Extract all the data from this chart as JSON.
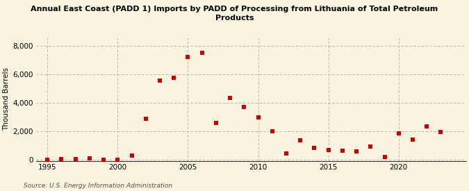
{
  "title": "Annual East Coast (PADD 1) Imports by PADD of Processing from Lithuania of Total Petroleum\nProducts",
  "ylabel": "Thousand Barrels",
  "source": "Source: U.S. Energy Information Administration",
  "background_color": "#faf3e0",
  "marker_color": "#cc0000",
  "xlim": [
    1994.2,
    2024.8
  ],
  "ylim": [
    -100,
    8600
  ],
  "xticks": [
    1995,
    2000,
    2005,
    2010,
    2015,
    2020
  ],
  "yticks": [
    0,
    2000,
    4000,
    6000,
    8000
  ],
  "years": [
    1995,
    1996,
    1997,
    1998,
    1999,
    2000,
    2001,
    2002,
    2003,
    2004,
    2005,
    2006,
    2007,
    2008,
    2009,
    2010,
    2011,
    2012,
    2013,
    2014,
    2015,
    2016,
    2017,
    2018,
    2019,
    2020,
    2021,
    2022,
    2023
  ],
  "values": [
    0,
    60,
    60,
    100,
    0,
    0,
    280,
    2850,
    5550,
    5750,
    7200,
    7500,
    2600,
    4350,
    3700,
    2950,
    2000,
    450,
    1350,
    800,
    700,
    650,
    600,
    900,
    200,
    1850,
    1400,
    2350,
    1950
  ]
}
